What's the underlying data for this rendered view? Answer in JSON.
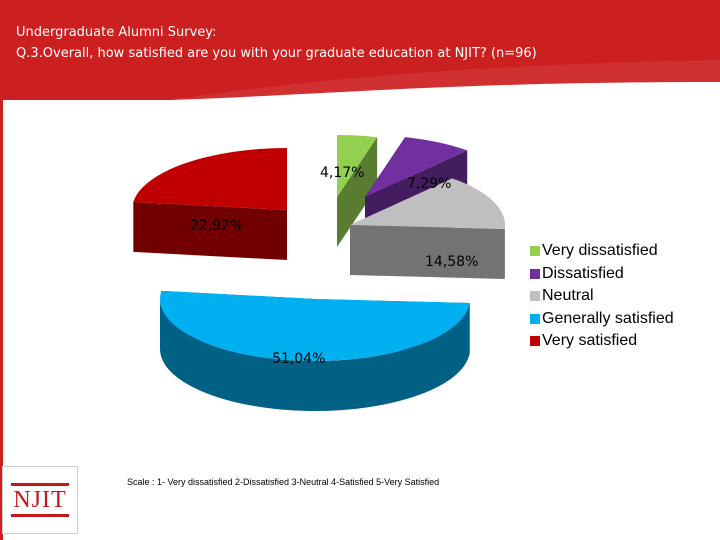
{
  "header": {
    "title_line1": "Undergraduate Alumni Survey:",
    "title_line2": "Q.3.Overall, how satisfied are you with your graduate education at NJIT? (n=96)",
    "bg_color": "#cc1f1f",
    "text_color": "#ffffff"
  },
  "logo": {
    "text": "NJIT",
    "color": "#c4161c"
  },
  "footnote": "Scale : 1- Very dissatisfied 2-Dissatisfied 3-Neutral 4-Satisfied 5-Very Satisfied",
  "chart_data": {
    "type": "pie",
    "style": "3d-exploded",
    "legend_position": "right",
    "labels": [
      "Very dissatisfied",
      "Dissatisfied",
      "Neutral",
      "Generally satisfied",
      "Very satisfied"
    ],
    "values": [
      4.17,
      7.29,
      14.58,
      51.04,
      22.92
    ],
    "data_labels": [
      "4,17%",
      "7,29%",
      "14,58%",
      "51,04%",
      "22,92%"
    ],
    "colors": [
      "#92d050",
      "#7030a0",
      "#bfbfbf",
      "#00b0f0",
      "#c00000"
    ]
  }
}
